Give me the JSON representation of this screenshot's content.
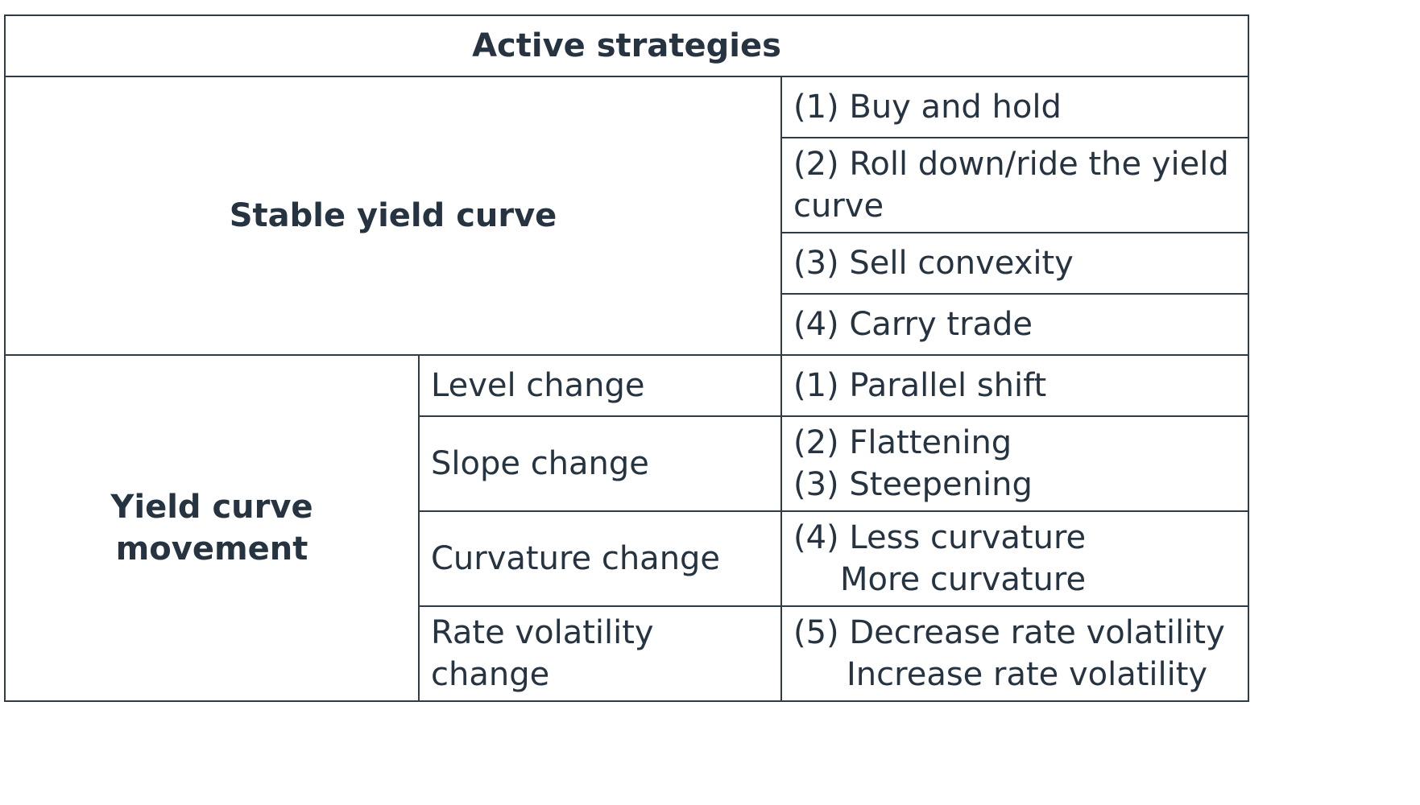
{
  "table": {
    "title": "Active strategies",
    "stable": {
      "label": "Stable yield curve",
      "strategies": [
        "(1) Buy and hold",
        "(2) Roll down/ride the yield curve",
        "(3) Sell convexity",
        "(4) Carry trade"
      ]
    },
    "movement": {
      "label": "Yield curve movement",
      "rows": [
        {
          "change": "Level change",
          "strategy_lines": [
            "(1) Parallel shift"
          ]
        },
        {
          "change": "Slope change",
          "strategy_lines": [
            "(2) Flattening",
            "(3) Steepening"
          ]
        },
        {
          "change": "Curvature change",
          "strategy_lines": [
            "(4) Less curvature",
            "More curvature"
          ]
        },
        {
          "change": "Rate volatility change",
          "strategy_lines": [
            "(5) Decrease rate volatility",
            "Increase rate volatility"
          ]
        }
      ]
    }
  }
}
